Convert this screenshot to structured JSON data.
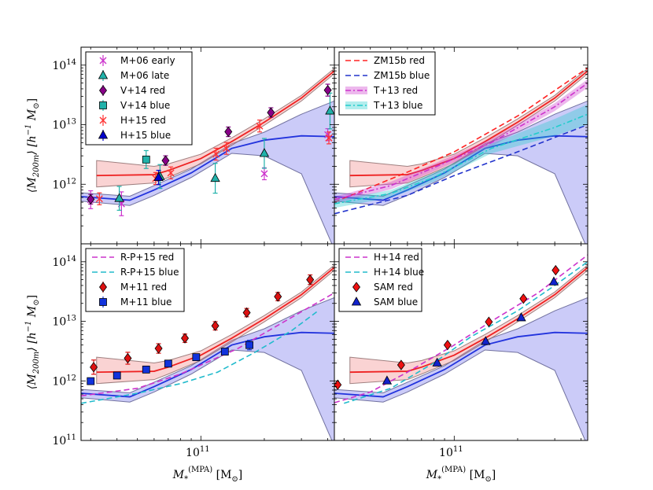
{
  "chart_data": {
    "type": "scatter",
    "shared": {
      "x_scale": "log",
      "y_scale": "log",
      "xlim": [
        27000000000,
        430000000000
      ],
      "ylim": [
        100000000000,
        200000000000000
      ],
      "x_ticks": [
        {
          "value": 100000000000,
          "base": "10",
          "exp": "11"
        }
      ],
      "y_ticks": [
        {
          "value": 100000000000,
          "base": "10",
          "exp": "11"
        },
        {
          "value": 1000000000000,
          "base": "10",
          "exp": "12"
        },
        {
          "value": 10000000000000,
          "base": "10",
          "exp": "13"
        },
        {
          "value": 100000000000000,
          "base": "10",
          "exp": "14"
        }
      ],
      "xlabel": {
        "main": "M",
        "sub": "*",
        "sup": "(MPA)",
        "unit": "[M",
        "unit_sub": "⊙",
        "unit_end": "]"
      },
      "ylabel": {
        "main": "⟨M",
        "sub": "200m",
        "mid": "⟩ [h",
        "sup": "−1",
        "unit": " M",
        "unit_sub": "⊙",
        "unit_end": "]"
      },
      "ref_red_line": {
        "x": [
          32000000000,
          60000000000,
          70000000000,
          100000000000,
          140000000000,
          200000000000,
          300000000000,
          430000000000
        ],
        "y": [
          1400000000000,
          1450000000000,
          1700000000000,
          2700000000000,
          5200000000000,
          11000000000000,
          28000000000000,
          80000000000000
        ]
      },
      "ref_red_band_upper": [
        2500000000000,
        2000000000000,
        2200000000000,
        3200000000000,
        6000000000000,
        12500000000000,
        31000000000000,
        88000000000000
      ],
      "ref_red_band_lower": [
        900000000000,
        1050000000000,
        1300000000000,
        2200000000000,
        4500000000000,
        9800000000000,
        25000000000000,
        72000000000000
      ],
      "ref_blue_line": {
        "x": [
          27000000000,
          46000000000,
          60000000000,
          90000000000,
          140000000000,
          200000000000,
          300000000000,
          430000000000
        ],
        "y": [
          620000000000,
          540000000000,
          800000000000,
          1550000000000,
          4000000000000,
          5500000000000,
          6500000000000,
          6300000000000
        ]
      },
      "ref_blue_band_upper": [
        720000000000,
        630000000000,
        950000000000,
        1800000000000,
        4800000000000,
        7500000000000,
        15000000000000,
        25000000000000
      ],
      "ref_blue_band_lower": [
        520000000000,
        440000000000,
        650000000000,
        1300000000000,
        3300000000000,
        3000000000000,
        1500000000000,
        80000000000
      ]
    },
    "panels": [
      {
        "id": "top-left",
        "legend": [
          "M+06 early",
          "M+06 late",
          "V+14 red",
          "V+14 blue",
          "H+15 red",
          "H+15 blue"
        ],
        "series": [
          {
            "name": "M+06 early",
            "color": "#cc33cc",
            "marker": "x",
            "x": [
              30000000000,
              42000000000,
              200000000000,
              400000000000
            ],
            "y": [
              550000000000,
              470000000000,
              1500000000000,
              6800000000000
            ],
            "err": [
              0.15,
              0.2,
              0.1,
              0.1
            ]
          },
          {
            "name": "M+06 late",
            "color": "#20b2aa",
            "marker": "triangle",
            "x": [
              41000000000,
              64000000000,
              117000000000,
              200000000000,
              410000000000
            ],
            "y": [
              580000000000,
              1350000000000,
              1260000000000,
              3300000000000,
              17000000000000
            ],
            "err": [
              0.2,
              0.2,
              0.25,
              0.25,
              0.3
            ]
          },
          {
            "name": "V+14 red",
            "color": "#880088",
            "marker": "diamond",
            "x": [
              30000000000,
              68000000000,
              135000000000,
              215000000000,
              400000000000
            ],
            "y": [
              560000000000,
              2500000000000,
              7600000000000,
              16000000000000,
              38000000000000
            ],
            "err": [
              0.08,
              0.08,
              0.08,
              0.08,
              0.1
            ]
          },
          {
            "name": "V+14 blue",
            "color": "#20b2aa",
            "marker": "square",
            "x": [
              55000000000
            ],
            "y": [
              2600000000000
            ],
            "err": [
              0.15
            ]
          },
          {
            "name": "H+15 red",
            "color": "#ff3333",
            "marker": "x",
            "x": [
              33000000000,
              61000000000,
              72000000000,
              118000000000,
              132000000000,
              190000000000,
              405000000000
            ],
            "y": [
              570000000000,
              1250000000000,
              1550000000000,
              3200000000000,
              4000000000000,
              9500000000000,
              6000000000000
            ],
            "err": [
              0.1,
              0.1,
              0.1,
              0.1,
              0.1,
              0.1,
              0.1
            ]
          },
          {
            "name": "H+15 blue",
            "color": "#0000cc",
            "marker": "triangle",
            "x": [
              63000000000
            ],
            "y": [
              1300000000000
            ],
            "err": [
              0.12
            ]
          }
        ]
      },
      {
        "id": "top-right",
        "legend": [
          "ZM15b red",
          "ZM15b blue",
          "T+13 red",
          "T+13 blue"
        ],
        "series": [
          {
            "name": "ZM15b red",
            "color": "#ff2222",
            "style": "dashed",
            "x": [
              27000000000,
              60000000000,
              100000000000,
              200000000000,
              430000000000
            ],
            "y": [
              500000000000,
              1600000000000,
              3500000000000,
              14000000000000,
              90000000000000
            ]
          },
          {
            "name": "ZM15b blue",
            "color": "#2233cc",
            "style": "dashed",
            "x": [
              27000000000,
              60000000000,
              100000000000,
              200000000000,
              430000000000
            ],
            "y": [
              320000000000,
              650000000000,
              1400000000000,
              3500000000000,
              10000000000000
            ]
          },
          {
            "name": "T+13 red",
            "color": "#cc33cc",
            "style": "dashdot",
            "x": [
              27000000000,
              50000000000,
              80000000000,
              150000000000,
              300000000000,
              430000000000
            ],
            "y": [
              550000000000,
              950000000000,
              1900000000000,
              5000000000000,
              20000000000000,
              50000000000000
            ],
            "band_up": [
              620000000000,
              1100000000000,
              2200000000000,
              5800000000000,
              23000000000000,
              58000000000000
            ],
            "band_lo": [
              480000000000,
              820000000000,
              1650000000000,
              4300000000000,
              17000000000000,
              42000000000000
            ]
          },
          {
            "name": "T+13 blue",
            "color": "#22cccc",
            "style": "dashdot",
            "x": [
              27000000000,
              50000000000,
              80000000000,
              150000000000,
              300000000000,
              430000000000
            ],
            "y": [
              470000000000,
              700000000000,
              1300000000000,
              4000000000000,
              9000000000000,
              15000000000000
            ],
            "band_up": [
              540000000000,
              800000000000,
              1550000000000,
              4800000000000,
              12500000000000,
              22000000000000
            ],
            "band_lo": [
              400000000000,
              600000000000,
              1100000000000,
              3300000000000,
              6500000000000,
              10000000000000
            ]
          }
        ]
      },
      {
        "id": "bottom-left",
        "legend": [
          "R-P+15 red",
          "R-P+15 blue",
          "M+11 red",
          "M+11 blue"
        ],
        "series": [
          {
            "name": "R-P+15 red",
            "color": "#cc33cc",
            "style": "dashed",
            "x": [
              27000000000,
              50000000000,
              80000000000,
              150000000000,
              250000000000,
              430000000000
            ],
            "y": [
              560000000000,
              750000000000,
              1300000000000,
              3500000000000,
              10000000000000,
              30000000000000
            ]
          },
          {
            "name": "R-P+15 blue",
            "color": "#22bbcc",
            "style": "dashed",
            "x": [
              27000000000,
              50000000000,
              80000000000,
              120000000000,
              180000000000,
              270000000000,
              360000000000
            ],
            "y": [
              420000000000,
              620000000000,
              900000000000,
              1400000000000,
              3000000000000,
              7000000000000,
              15000000000000
            ]
          },
          {
            "name": "M+11 red",
            "color": "#dd1111",
            "marker": "diamond",
            "x": [
              31000000000,
              45000000000,
              63000000000,
              84000000000,
              117000000000,
              165000000000,
              232000000000,
              330000000000
            ],
            "y": [
              1700000000000,
              2400000000000,
              3500000000000,
              5200000000000,
              8400000000000,
              14000000000000,
              26000000000000,
              50000000000000
            ],
            "err": [
              0.12,
              0.1,
              0.08,
              0.07,
              0.07,
              0.07,
              0.07,
              0.08
            ]
          },
          {
            "name": "M+11 blue",
            "color": "#1133dd",
            "marker": "square",
            "x": [
              30000000000,
              40000000000,
              55000000000,
              70000000000,
              95000000000,
              130000000000,
              170000000000
            ],
            "y": [
              990000000000,
              1230000000000,
              1550000000000,
              1950000000000,
              2500000000000,
              3100000000000,
              4000000000000
            ],
            "err": [
              0.05,
              0.05,
              0.05,
              0.05,
              0.05,
              0.05,
              0.08
            ]
          }
        ]
      },
      {
        "id": "bottom-right",
        "legend": [
          "H+14 red",
          "H+14 blue",
          "SAM red",
          "SAM blue"
        ],
        "series": [
          {
            "name": "H+14 red",
            "color": "#cc33cc",
            "style": "dashed",
            "x": [
              27000000000,
              40000000000,
              60000000000,
              100000000000,
              150000000000,
              250000000000,
              430000000000
            ],
            "y": [
              430000000000,
              650000000000,
              1400000000000,
              4000000000000,
              10000000000000,
              30000000000000,
              130000000000000
            ]
          },
          {
            "name": "H+14 blue",
            "color": "#22bbcc",
            "style": "dashed",
            "x": [
              30000000000,
              50000000000,
              80000000000,
              120000000000,
              200000000000,
              300000000000,
              430000000000
            ],
            "y": [
              420000000000,
              750000000000,
              2000000000000,
              5500000000000,
              15000000000000,
              40000000000000,
              100000000000000
            ]
          },
          {
            "name": "SAM red",
            "color": "#ee1111",
            "marker": "diamond",
            "x": [
              28000000000,
              56000000000,
              93000000000,
              146000000000,
              213000000000,
              303000000000
            ],
            "y": [
              860000000000,
              1850000000000,
              4000000000000,
              9800000000000,
              24000000000000,
              72000000000000
            ]
          },
          {
            "name": "SAM blue",
            "color": "#1122cc",
            "marker": "triangle",
            "x": [
              48000000000,
              83000000000,
              141000000000,
              208000000000,
              297000000000
            ],
            "y": [
              1000000000000,
              2000000000000,
              4600000000000,
              11500000000000,
              46000000000000
            ]
          }
        ]
      }
    ]
  }
}
